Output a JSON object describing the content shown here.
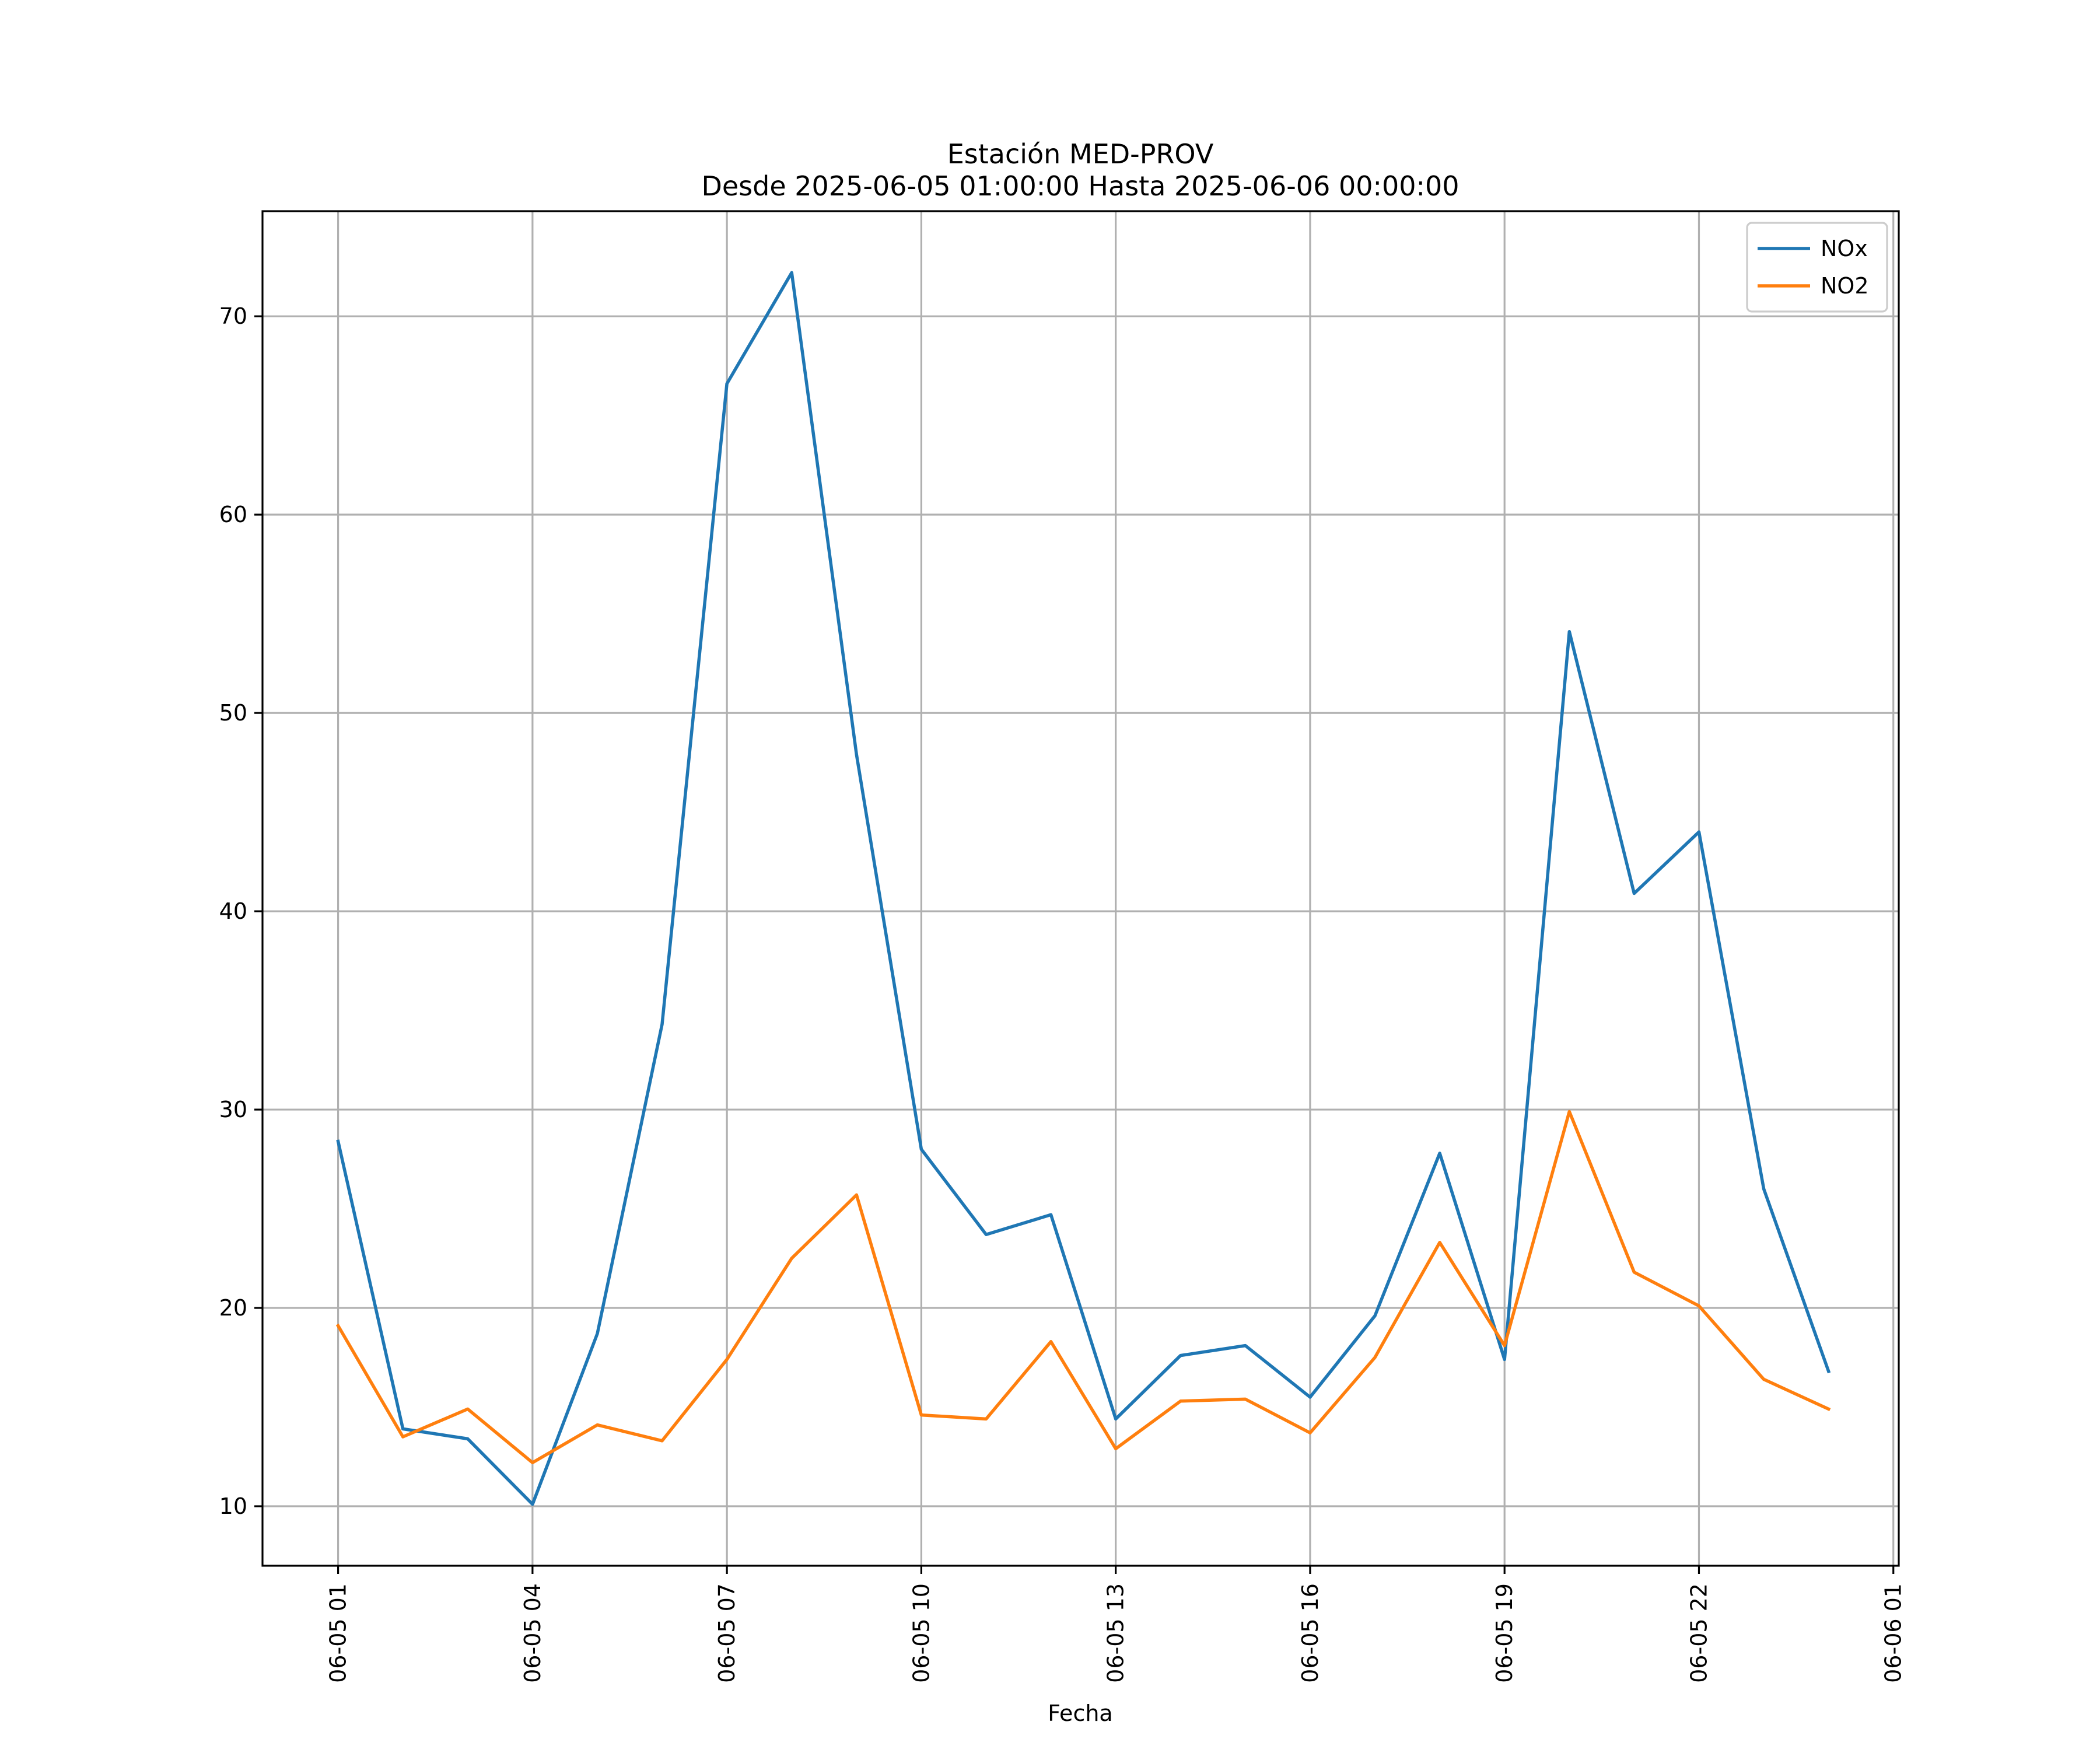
{
  "chart_data": {
    "type": "line",
    "title": "Estación MED-PROV",
    "subtitle": "Desde 2025-06-05 01:00:00 Hasta 2025-06-06 00:00:00",
    "xlabel": "Fecha",
    "ylabel": "",
    "x": [
      "2025-06-05 01:00",
      "2025-06-05 02:00",
      "2025-06-05 03:00",
      "2025-06-05 04:00",
      "2025-06-05 05:00",
      "2025-06-05 06:00",
      "2025-06-05 07:00",
      "2025-06-05 08:00",
      "2025-06-05 09:00",
      "2025-06-05 10:00",
      "2025-06-05 11:00",
      "2025-06-05 12:00",
      "2025-06-05 13:00",
      "2025-06-05 14:00",
      "2025-06-05 15:00",
      "2025-06-05 16:00",
      "2025-06-05 17:00",
      "2025-06-05 18:00",
      "2025-06-05 19:00",
      "2025-06-05 20:00",
      "2025-06-05 21:00",
      "2025-06-05 22:00",
      "2025-06-05 23:00",
      "2025-06-06 00:00"
    ],
    "xlim": [
      "2025-06-04 23:50",
      "2025-06-06 01:05"
    ],
    "ylim": [
      7,
      75.3
    ],
    "x_ticks": {
      "positions": [
        "2025-06-05 01:00",
        "2025-06-05 04:00",
        "2025-06-05 07:00",
        "2025-06-05 10:00",
        "2025-06-05 13:00",
        "2025-06-05 16:00",
        "2025-06-05 19:00",
        "2025-06-05 22:00",
        "2025-06-06 01:00"
      ],
      "labels": [
        "06-05 01",
        "06-05 04",
        "06-05 07",
        "06-05 10",
        "06-05 13",
        "06-05 16",
        "06-05 19",
        "06-05 22",
        "06-06 01"
      ]
    },
    "y_ticks": [
      10,
      20,
      30,
      40,
      50,
      60,
      70
    ],
    "grid": true,
    "legend_position": "top-right",
    "series": [
      {
        "name": "NOx",
        "color": "#1f77b4",
        "values": [
          28.4,
          13.9,
          13.4,
          10.1,
          18.7,
          34.3,
          66.6,
          72.2,
          47.9,
          28.0,
          23.7,
          24.7,
          14.4,
          17.6,
          18.1,
          15.5,
          19.6,
          27.8,
          17.4,
          54.1,
          40.9,
          44.0,
          26.0,
          16.8
        ]
      },
      {
        "name": "NO2",
        "color": "#ff7f0e",
        "values": [
          19.1,
          13.5,
          14.9,
          12.2,
          14.1,
          13.3,
          17.4,
          22.5,
          25.7,
          14.6,
          14.4,
          18.3,
          12.9,
          15.3,
          15.4,
          13.7,
          17.5,
          23.3,
          18.1,
          29.9,
          21.8,
          20.1,
          16.4,
          14.9
        ]
      }
    ]
  }
}
